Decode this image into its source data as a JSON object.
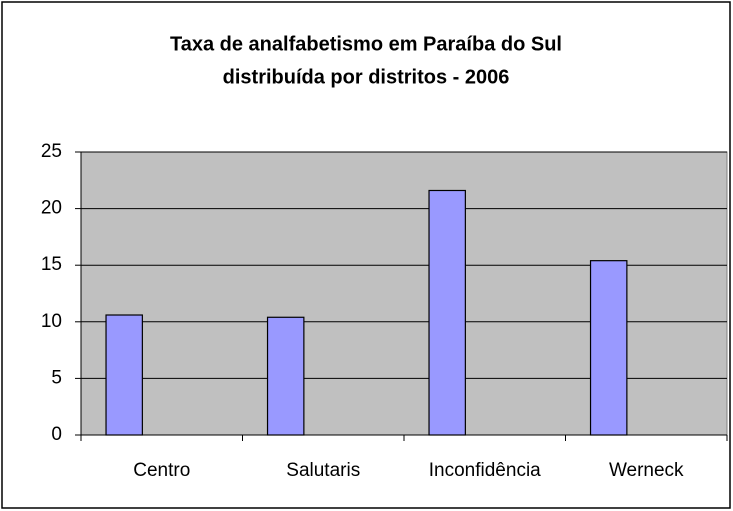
{
  "chart_data": {
    "type": "bar",
    "title": [
      "Taxa de analfabetismo em Paraíba do Sul",
      "distribuída por distritos - 2006"
    ],
    "categories": [
      "Centro",
      "Salutaris",
      "Inconfidência",
      "Werneck"
    ],
    "values": [
      10.6,
      10.4,
      21.6,
      15.4
    ],
    "color": "#9999ff",
    "ylim": [
      0,
      25
    ],
    "yticks": [
      0,
      5,
      10,
      15,
      20,
      25
    ],
    "grid": true
  }
}
